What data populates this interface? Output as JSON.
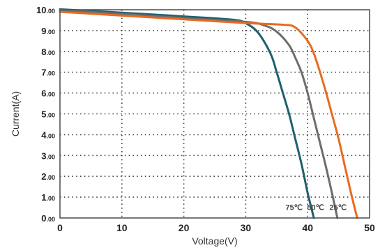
{
  "chart_data": {
    "type": "line",
    "title": "",
    "xlabel": "Voltage(V)",
    "ylabel": "Current(A)",
    "xlim": [
      0,
      50
    ],
    "ylim": [
      0,
      10
    ],
    "x_ticks": [
      {
        "value": 0,
        "label": "0"
      },
      {
        "value": 10,
        "label": "10"
      },
      {
        "value": 20,
        "label": "20"
      },
      {
        "value": 30,
        "label": "30"
      },
      {
        "value": 40,
        "label": "40"
      },
      {
        "value": 50,
        "label": "50"
      }
    ],
    "y_ticks": [
      {
        "value": 0,
        "label": "0.00"
      },
      {
        "value": 1,
        "label": "1.00"
      },
      {
        "value": 2,
        "label": "2.00"
      },
      {
        "value": 3,
        "label": "3.00"
      },
      {
        "value": 4,
        "label": "4.00"
      },
      {
        "value": 5,
        "label": "5.00"
      },
      {
        "value": 6,
        "label": "6.00"
      },
      {
        "value": 7,
        "label": "7.00"
      },
      {
        "value": 8,
        "label": "8.00"
      },
      {
        "value": 9,
        "label": "9.00"
      },
      {
        "value": 10,
        "label": "10.00"
      }
    ],
    "grid": true,
    "series": [
      {
        "name": "75℃",
        "color": "#1f5f6e",
        "x": [
          0,
          10,
          20,
          28,
          30,
          32,
          34,
          35,
          36,
          37,
          38,
          39,
          40,
          40.5,
          41
        ],
        "y": [
          10.02,
          9.86,
          9.68,
          9.52,
          9.35,
          8.9,
          7.9,
          7.0,
          6.0,
          5.0,
          3.8,
          2.6,
          1.2,
          0.6,
          0
        ]
      },
      {
        "name": "50℃",
        "color": "#6d6d6d",
        "x": [
          0,
          10,
          20,
          30,
          33,
          35,
          37,
          38,
          39,
          40,
          41,
          42,
          43,
          44,
          44.8
        ],
        "y": [
          9.98,
          9.8,
          9.6,
          9.42,
          9.25,
          8.95,
          8.3,
          7.7,
          7.0,
          6.0,
          4.8,
          3.6,
          2.4,
          1.1,
          0
        ]
      },
      {
        "name": "25℃",
        "color": "#e86b1f",
        "x": [
          0,
          10,
          20,
          30,
          36,
          38,
          40,
          41,
          42,
          43,
          44,
          45,
          46,
          47,
          48
        ],
        "y": [
          9.9,
          9.72,
          9.54,
          9.36,
          9.28,
          9.15,
          8.5,
          7.9,
          7.0,
          6.0,
          4.9,
          3.8,
          2.5,
          1.2,
          0
        ]
      }
    ],
    "annotations": [
      "75℃",
      "50℃",
      "25℃"
    ]
  }
}
